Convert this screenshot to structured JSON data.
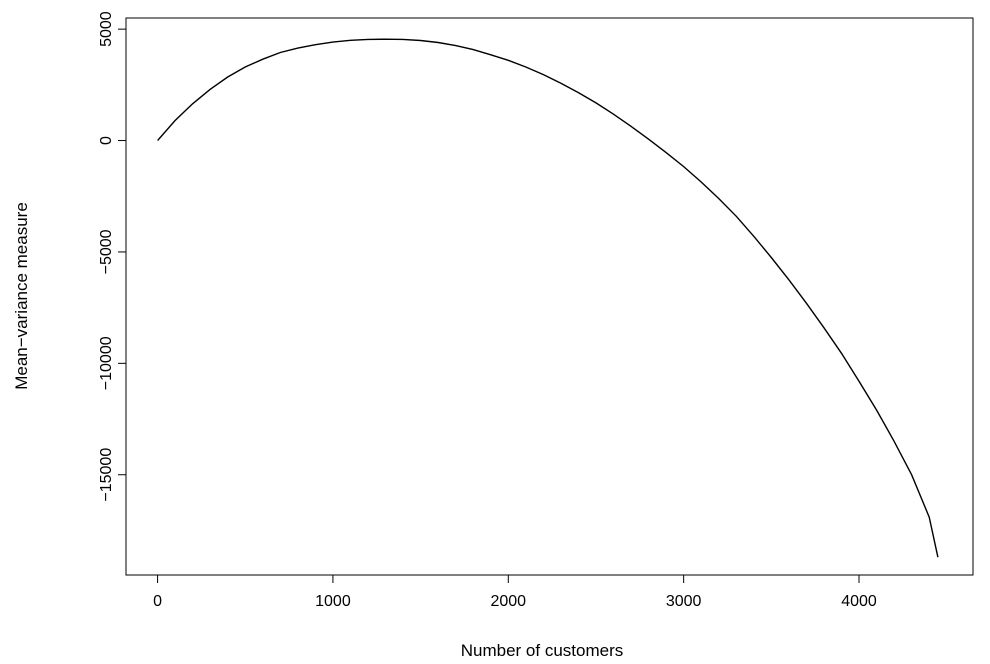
{
  "chart_data": {
    "type": "line",
    "title": "",
    "xlabel": "Number of customers",
    "ylabel": "Mean−variance measure",
    "xlim": [
      -180,
      4650
    ],
    "ylim": [
      -19500,
      5500
    ],
    "xticks": [
      0,
      1000,
      2000,
      3000,
      4000
    ],
    "xtick_labels": [
      "0",
      "1000",
      "2000",
      "3000",
      "4000"
    ],
    "yticks": [
      5000,
      0,
      -5000,
      -10000,
      -15000
    ],
    "ytick_labels": [
      "5000",
      "0",
      "−5000",
      "−10000",
      "−15000"
    ],
    "grid": false,
    "legend": "none",
    "line_color": "#000000",
    "series": [
      {
        "x": [
          0,
          100,
          200,
          300,
          400,
          500,
          600,
          700,
          800,
          900,
          1000,
          1100,
          1200,
          1300,
          1400,
          1500,
          1600,
          1700,
          1800,
          1900,
          2000,
          2100,
          2200,
          2300,
          2400,
          2500,
          2600,
          2700,
          2800,
          2900,
          3000,
          3100,
          3200,
          3300,
          3400,
          3500,
          3600,
          3700,
          3800,
          3900,
          4000,
          4100,
          4200,
          4300,
          4400,
          4450
        ],
        "y": [
          0,
          900,
          1650,
          2300,
          2850,
          3300,
          3650,
          3950,
          4150,
          4300,
          4420,
          4500,
          4540,
          4550,
          4540,
          4490,
          4400,
          4260,
          4080,
          3850,
          3600,
          3300,
          2960,
          2570,
          2150,
          1690,
          1180,
          640,
          60,
          -540,
          -1170,
          -1860,
          -2600,
          -3400,
          -4300,
          -5250,
          -6250,
          -7300,
          -8400,
          -9550,
          -10800,
          -12100,
          -13500,
          -15000,
          -16900,
          -18700
        ]
      }
    ]
  }
}
